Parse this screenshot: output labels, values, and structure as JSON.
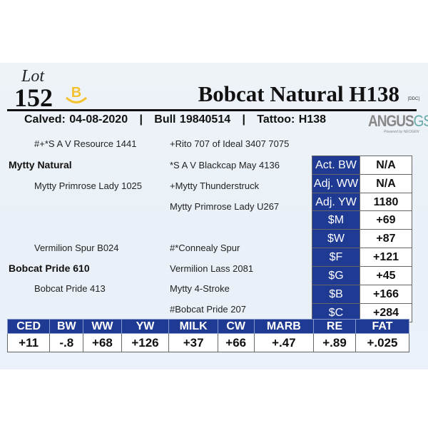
{
  "lot": {
    "label": "Lot",
    "number": "152",
    "badge_letter": "B",
    "badge_color": "#f2c230"
  },
  "animal": {
    "name": "Bobcat Natural H138",
    "tag": "[DDC]",
    "calved": "Calved: 04-08-2020",
    "reg": "Bull 19840514",
    "tattoo": "Tattoo: H138",
    "sep": "|"
  },
  "logo": {
    "main": "ANGUS",
    "suffix": "GS",
    "powered": "Powered by NEOGEN"
  },
  "pedigree": {
    "sire": "Mytty Natural",
    "sire_sire": "#+*S A V Resource 1441",
    "sire_dam": "Mytty Primrose Lady 1025",
    "ss_sire": "+Rito 707 of Ideal 3407 7075",
    "ss_dam": "*S A V Blackcap May 4136",
    "sd_sire": "+Mytty Thunderstruck",
    "sd_dam": "Mytty Primrose Lady U267",
    "dam": "Bobcat Pride 610",
    "dam_sire": "Vermilion Spur B024",
    "dam_dam": "Bobcat Pride 413",
    "ds_sire": "#*Connealy Spur",
    "ds_dam": "Vermilion Lass 2081",
    "dd_sire": "Mytty 4-Stroke",
    "dd_dam": "#Bobcat Pride 207"
  },
  "performance": [
    {
      "label": "Act. BW",
      "value": "N/A"
    },
    {
      "label": "Adj. WW",
      "value": "N/A"
    },
    {
      "label": "Adj. YW",
      "value": "1180"
    }
  ],
  "indexes": [
    {
      "label": "$M",
      "value": "+69"
    },
    {
      "label": "$W",
      "value": "+87"
    },
    {
      "label": "$F",
      "value": "+121"
    },
    {
      "label": "$G",
      "value": "+45"
    },
    {
      "label": "$B",
      "value": "+166"
    },
    {
      "label": "$C",
      "value": "+284"
    }
  ],
  "epds": {
    "headers": [
      "CED",
      "BW",
      "WW",
      "YW",
      "MILK",
      "CW",
      "MARB",
      "RE",
      "FAT"
    ],
    "values": [
      "+11",
      "-.8",
      "+68",
      "+126",
      "+37",
      "+66",
      "+.47",
      "+.89",
      "+.025"
    ]
  },
  "colors": {
    "accent": "#1f3a93"
  }
}
